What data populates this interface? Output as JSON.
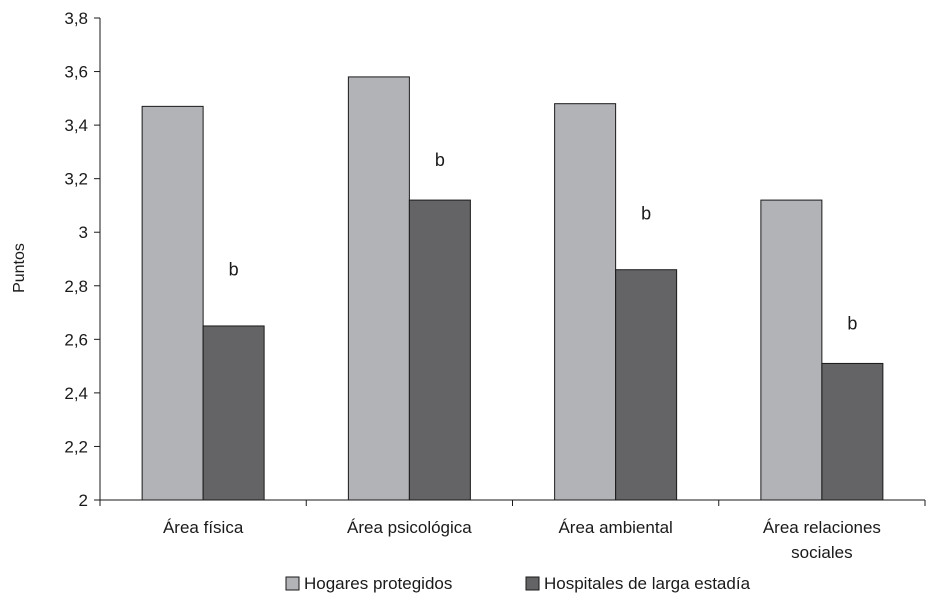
{
  "chart_data": {
    "type": "bar",
    "title": "",
    "xlabel": "",
    "ylabel": "Puntos",
    "ylim": [
      2,
      3.8
    ],
    "yticks": [
      2,
      2.2,
      2.4,
      2.6,
      2.8,
      3,
      3.2,
      3.4,
      3.6,
      3.8
    ],
    "ytick_labels": [
      "2",
      "2,2",
      "2,4",
      "2,6",
      "2,8",
      "3",
      "3,2",
      "3,4",
      "3,6",
      "3,8"
    ],
    "grid": false,
    "legend_position": "bottom",
    "categories": [
      [
        "Área física"
      ],
      [
        "Área psicológica"
      ],
      [
        "Área ambiental"
      ],
      [
        "Área relaciones",
        "sociales"
      ]
    ],
    "series": [
      {
        "name": "Hogares protegidos",
        "color": "#b2b3b7",
        "values": [
          3.47,
          3.58,
          3.48,
          3.12
        ]
      },
      {
        "name": "Hospitales de larga estadía",
        "color": "#646466",
        "values": [
          2.65,
          3.12,
          2.86,
          2.51
        ]
      }
    ],
    "annotations": [
      {
        "category_index": 0,
        "text": "b",
        "y": 2.86
      },
      {
        "category_index": 1,
        "text": "b",
        "y": 3.27
      },
      {
        "category_index": 2,
        "text": "b",
        "y": 3.07
      },
      {
        "category_index": 3,
        "text": "b",
        "y": 2.66
      }
    ]
  }
}
